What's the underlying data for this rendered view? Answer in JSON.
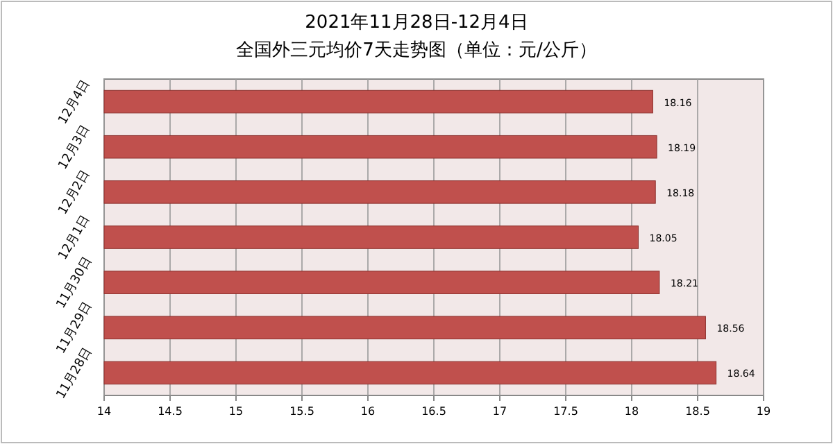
{
  "chart_data": {
    "type": "bar",
    "orientation": "horizontal",
    "title": "2021年11月28日-12月4日",
    "subtitle": "全国外三元均价7天走势图（单位：元/公斤）",
    "categories": [
      "12月4日",
      "12月3日",
      "12月2日",
      "12月1日",
      "11月30日",
      "11月29日",
      "11月28日"
    ],
    "values": [
      18.16,
      18.19,
      18.18,
      18.05,
      18.21,
      18.56,
      18.64
    ],
    "color": "#c0504d",
    "xlim": [
      14,
      19
    ],
    "xticks": [
      14,
      14.5,
      15,
      15.5,
      16,
      16.5,
      17,
      17.5,
      18,
      18.5,
      19
    ],
    "grid": "x",
    "data_labels": true
  }
}
